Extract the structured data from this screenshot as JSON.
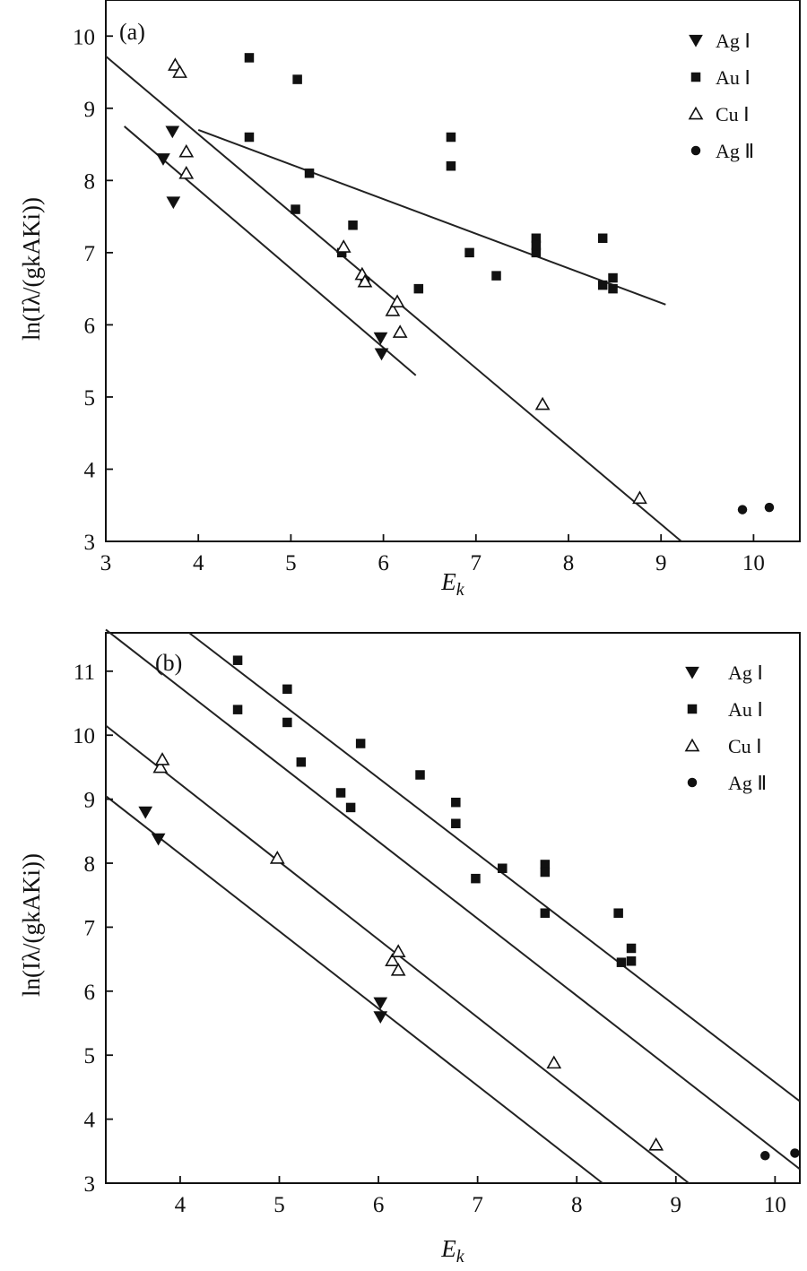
{
  "chart_data": [
    {
      "id": "a",
      "type": "scatter",
      "panel_label": "(a)",
      "xlabel_main": "E",
      "xlabel_sub": "k",
      "ylabel": "ln(Iλ/(gkAKi))",
      "xlim": [
        3,
        10.5
      ],
      "ylim": [
        3,
        10.5
      ],
      "xticks": [
        3,
        4,
        5,
        6,
        7,
        8,
        9,
        10
      ],
      "yticks": [
        3,
        4,
        5,
        6,
        7,
        8,
        9,
        10
      ],
      "legend_position": "top-right",
      "series": [
        {
          "name": "Ag Ⅰ",
          "marker": "triangle-down-filled",
          "points": [
            [
              3.62,
              8.3
            ],
            [
              3.72,
              8.68
            ],
            [
              3.73,
              7.7
            ],
            [
              5.97,
              5.82
            ],
            [
              5.98,
              5.6
            ]
          ]
        },
        {
          "name": "Au Ⅰ",
          "marker": "square-filled",
          "points": [
            [
              4.55,
              9.7
            ],
            [
              4.55,
              8.6
            ],
            [
              5.07,
              9.4
            ],
            [
              5.05,
              7.6
            ],
            [
              5.2,
              8.1
            ],
            [
              5.55,
              7.0
            ],
            [
              5.67,
              7.38
            ],
            [
              5.8,
              6.6
            ],
            [
              6.38,
              6.5
            ],
            [
              6.73,
              8.6
            ],
            [
              6.73,
              8.2
            ],
            [
              6.93,
              7.0
            ],
            [
              7.22,
              6.68
            ],
            [
              7.65,
              7.2
            ],
            [
              7.65,
              7.0
            ],
            [
              7.65,
              7.1
            ],
            [
              8.37,
              7.2
            ],
            [
              8.37,
              6.55
            ],
            [
              8.48,
              6.65
            ],
            [
              8.48,
              6.5
            ]
          ]
        },
        {
          "name": "Cu Ⅰ",
          "marker": "triangle-up-open",
          "points": [
            [
              3.75,
              9.6
            ],
            [
              3.8,
              9.5
            ],
            [
              3.87,
              8.1
            ],
            [
              3.87,
              8.4
            ],
            [
              5.57,
              7.08
            ],
            [
              5.77,
              6.7
            ],
            [
              5.8,
              6.6
            ],
            [
              6.1,
              6.2
            ],
            [
              6.15,
              6.32
            ],
            [
              6.18,
              5.9
            ],
            [
              7.72,
              4.9
            ],
            [
              8.77,
              3.6
            ]
          ]
        },
        {
          "name": "Ag Ⅱ",
          "marker": "circle-filled",
          "points": [
            [
              9.88,
              3.44
            ],
            [
              10.17,
              3.47
            ]
          ]
        }
      ],
      "fit_lines": [
        {
          "x": [
            3.0,
            9.22
          ],
          "y": [
            9.72,
            3.0
          ]
        },
        {
          "x": [
            3.2,
            6.35
          ],
          "y": [
            8.75,
            5.3
          ]
        },
        {
          "x": [
            4.0,
            9.05
          ],
          "y": [
            8.7,
            6.28
          ]
        }
      ]
    },
    {
      "id": "b",
      "type": "scatter",
      "panel_label": "(b)",
      "xlabel_main": "E",
      "xlabel_sub": "k",
      "ylabel": "ln(Iλ/(gkAKi))",
      "xlim": [
        3.25,
        10.25
      ],
      "ylim": [
        3,
        11.6
      ],
      "xticks": [
        4,
        5,
        6,
        7,
        8,
        9,
        10
      ],
      "yticks": [
        3,
        4,
        5,
        6,
        7,
        8,
        9,
        10,
        11
      ],
      "legend_position": "top-right",
      "series": [
        {
          "name": "Ag Ⅰ",
          "marker": "triangle-down-filled",
          "points": [
            [
              3.65,
              8.8
            ],
            [
              3.78,
              8.38
            ],
            [
              6.02,
              5.82
            ],
            [
              6.02,
              5.6
            ]
          ]
        },
        {
          "name": "Au Ⅰ",
          "marker": "square-filled",
          "points": [
            [
              4.58,
              11.17
            ],
            [
              4.58,
              10.4
            ],
            [
              5.08,
              10.72
            ],
            [
              5.08,
              10.2
            ],
            [
              5.22,
              9.58
            ],
            [
              5.62,
              9.1
            ],
            [
              5.72,
              8.87
            ],
            [
              5.82,
              9.87
            ],
            [
              6.42,
              9.38
            ],
            [
              6.78,
              8.95
            ],
            [
              6.78,
              8.62
            ],
            [
              6.98,
              7.76
            ],
            [
              7.25,
              7.92
            ],
            [
              7.68,
              7.98
            ],
            [
              7.68,
              7.86
            ],
            [
              7.68,
              7.22
            ],
            [
              8.42,
              7.22
            ],
            [
              8.45,
              6.45
            ],
            [
              8.55,
              6.67
            ],
            [
              8.55,
              6.47
            ]
          ]
        },
        {
          "name": "Cu Ⅰ",
          "marker": "triangle-up-open",
          "points": [
            [
              3.8,
              9.5
            ],
            [
              3.82,
              9.62
            ],
            [
              4.98,
              8.08
            ],
            [
              6.14,
              6.48
            ],
            [
              6.2,
              6.62
            ],
            [
              6.2,
              6.33
            ],
            [
              7.77,
              4.88
            ],
            [
              8.8,
              3.6
            ]
          ]
        },
        {
          "name": "Ag Ⅱ",
          "marker": "circle-filled",
          "points": [
            [
              9.9,
              3.43
            ],
            [
              10.2,
              3.47
            ]
          ]
        }
      ],
      "fit_lines": [
        {
          "x": [
            3.25,
            8.26
          ],
          "y": [
            9.05,
            3.0
          ]
        },
        {
          "x": [
            3.25,
            9.13
          ],
          "y": [
            10.15,
            3.0
          ]
        },
        {
          "x": [
            3.25,
            10.25
          ],
          "y": [
            11.65,
            3.22
          ]
        },
        {
          "x": [
            4.09,
            10.25
          ],
          "y": [
            11.6,
            4.28
          ]
        }
      ]
    }
  ]
}
